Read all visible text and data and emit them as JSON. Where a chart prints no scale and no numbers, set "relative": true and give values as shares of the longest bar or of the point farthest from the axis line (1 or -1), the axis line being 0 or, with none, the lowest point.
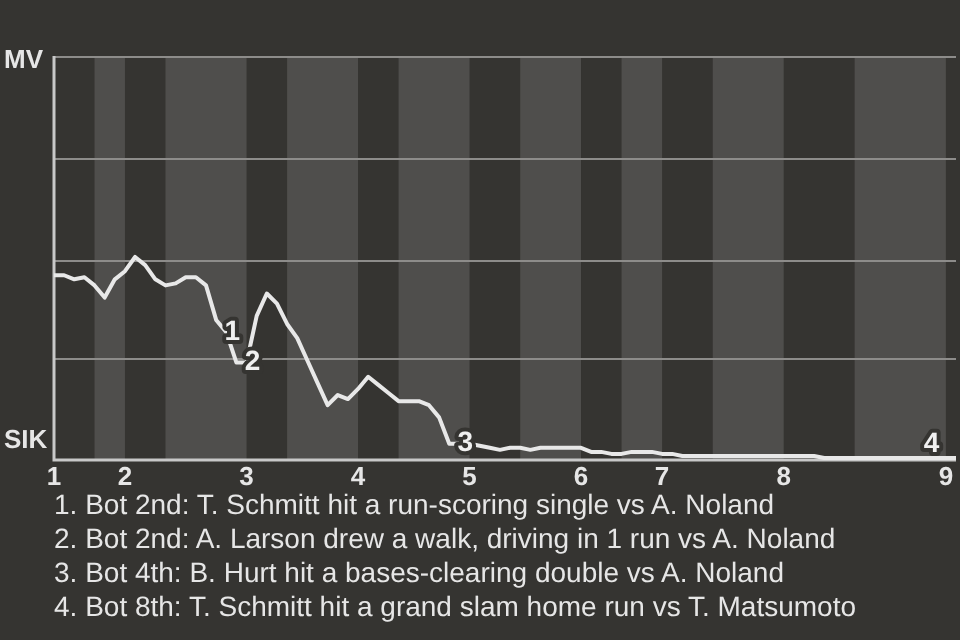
{
  "chart_data": {
    "type": "line",
    "relative": true,
    "categories": [
      "1",
      null,
      null,
      null,
      null,
      null,
      null,
      "2",
      null,
      null,
      null,
      null,
      null,
      null,
      null,
      null,
      null,
      null,
      null,
      "3",
      null,
      null,
      null,
      null,
      null,
      null,
      null,
      null,
      null,
      null,
      "4",
      null,
      null,
      null,
      null,
      null,
      null,
      null,
      null,
      null,
      null,
      "5",
      null,
      null,
      null,
      null,
      null,
      null,
      null,
      null,
      null,
      null,
      "6",
      null,
      null,
      null,
      null,
      null,
      null,
      null,
      "7",
      null,
      null,
      null,
      null,
      null,
      null,
      null,
      null,
      null,
      null,
      null,
      "8",
      null,
      null,
      null,
      null,
      null,
      null,
      null,
      null,
      null,
      null,
      null,
      null,
      null,
      null,
      null,
      "9",
      null
    ],
    "series": [
      {
        "color": "#e8e8e8",
        "values": [
          0.91,
          0.91,
          0.89,
          0.9,
          0.86,
          0.8,
          0.89,
          0.93,
          1,
          0.96,
          0.89,
          0.86,
          0.87,
          0.9,
          0.9,
          0.86,
          0.69,
          0.63,
          0.48,
          0.48,
          0.71,
          0.82,
          0.77,
          0.67,
          0.6,
          0.49,
          0.38,
          0.27,
          0.32,
          0.3,
          0.35,
          0.41,
          0.37,
          0.33,
          0.29,
          0.29,
          0.29,
          0.27,
          0.21,
          0.08,
          0.08,
          0.08,
          0.07,
          0.06,
          0.05,
          0.06,
          0.06,
          0.05,
          0.06,
          0.06,
          0.06,
          0.06,
          0.06,
          0.04,
          0.04,
          0.03,
          0.03,
          0.04,
          0.04,
          0.04,
          0.03,
          0.03,
          0.02,
          0.02,
          0.02,
          0.02,
          0.02,
          0.02,
          0.02,
          0.02,
          0.02,
          0.02,
          0.02,
          0.02,
          0.02,
          0.02,
          0.01,
          0.01,
          0.01,
          0.01,
          0.01,
          0.01,
          0.01,
          0.01,
          0.01,
          0.01,
          0.01,
          0.01,
          0.01,
          0.01
        ]
      }
    ],
    "marker": "none",
    "ref_lines": [
      {
        "axis": "y",
        "value": 0.5,
        "color": "#8d8c8a"
      },
      {
        "axis": "y",
        "value": 0.99,
        "color": "#8d8c8a"
      },
      {
        "axis": "y",
        "value": 1.49,
        "color": "#8d8c8a"
      },
      {
        "axis": "y",
        "value": 1.99,
        "color": "#8d8c8a"
      }
    ],
    "annotations": [
      "MV",
      "SIK",
      "1",
      "2",
      "3",
      "4",
      "1. Bot 2nd: T. Schmitt hit a run-scoring single vs A. Noland",
      "2. Bot 2nd: A. Larson drew a walk, driving in 1 run vs A. Noland",
      "3. Bot 4th: B. Hurt hit a bases-clearing double vs A. Noland",
      "4. Bot 8th: T. Schmitt hit a grand slam home run vs T. Matsumoto"
    ]
  }
}
